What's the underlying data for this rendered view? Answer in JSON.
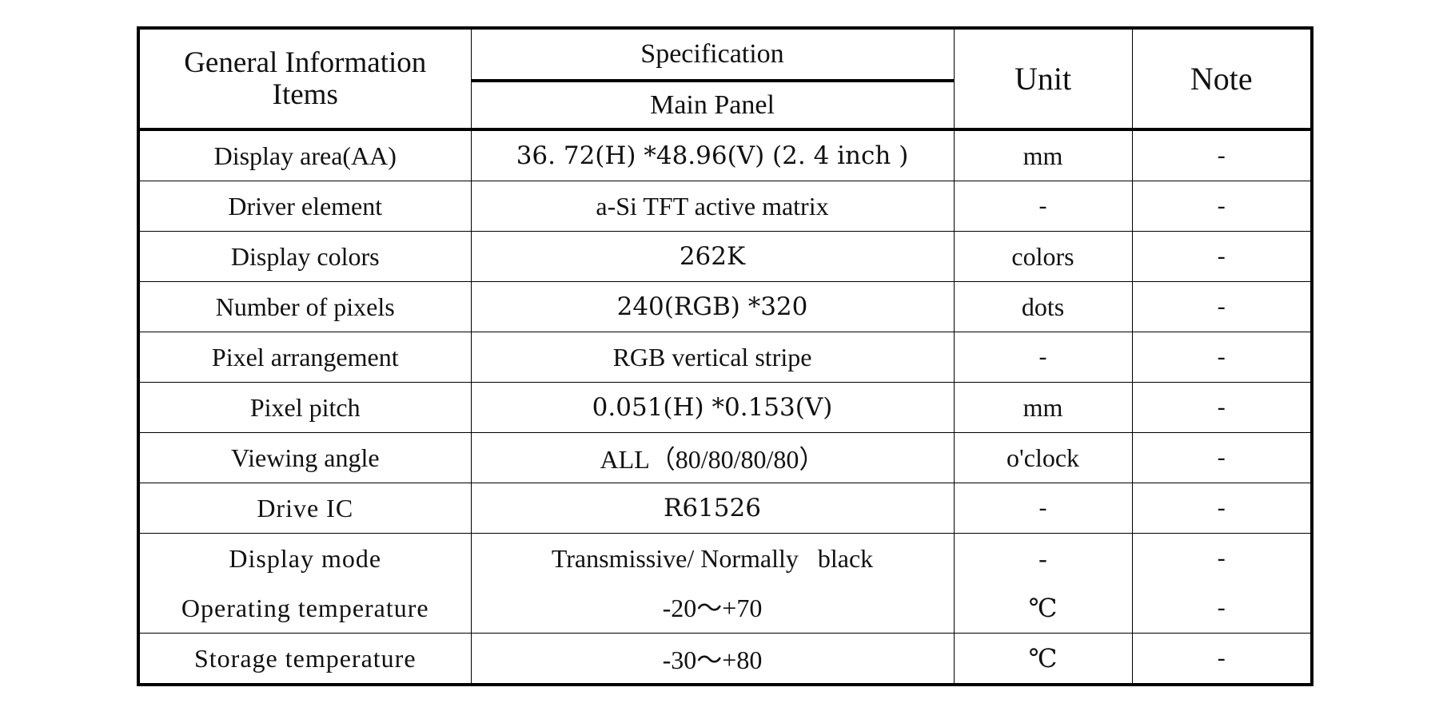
{
  "header": {
    "items_line1": "General Information",
    "items_line2": "Items",
    "spec": "Specification",
    "main_panel": "Main Panel",
    "unit": "Unit",
    "note": "Note"
  },
  "rows": [
    {
      "item": "Display area(AA)",
      "spec": "36. 72(H) *48.96(V) (2. 4 inch )",
      "unit": "mm",
      "note": "-"
    },
    {
      "item": "Driver element",
      "spec": "a-Si TFT active matrix",
      "unit": "-",
      "note": "-"
    },
    {
      "item": "Display colors",
      "spec": "262K",
      "unit": "colors",
      "note": "-"
    },
    {
      "item": "Number of pixels",
      "spec": "240(RGB) *320",
      "unit": "dots",
      "note": "-"
    },
    {
      "item": "Pixel arrangement",
      "spec": "RGB vertical stripe",
      "unit": "-",
      "note": "-"
    },
    {
      "item": "Pixel pitch",
      "spec": "0.051(H) *0.153(V)",
      "unit": "mm",
      "note": "-"
    },
    {
      "item": "Viewing angle",
      "spec": "ALL（80/80/80/80）",
      "unit": "o'clock",
      "note": "-"
    },
    {
      "item": "Drive IC",
      "spec": "R61526",
      "unit": "-",
      "note": "-"
    }
  ],
  "stacked": {
    "item1": "Display mode",
    "item2": "Operating temperature",
    "spec1": "Transmissive/ Normally   black",
    "spec2": "-20～+70",
    "unit1": "-",
    "unit2": "℃",
    "note1": "-",
    "note2": "-"
  },
  "last_row": {
    "item": "Storage temperature",
    "spec": "-30～+80",
    "unit": "℃",
    "note": "-"
  }
}
